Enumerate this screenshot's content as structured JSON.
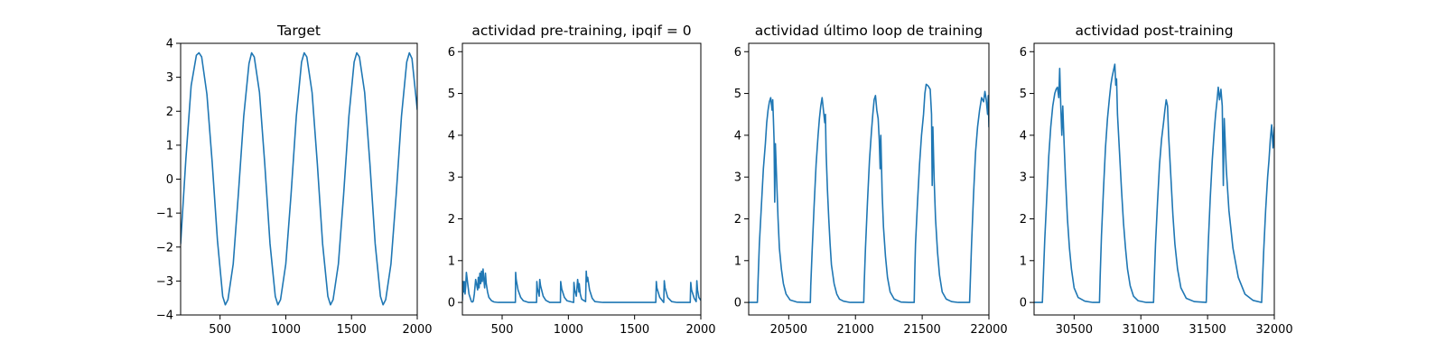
{
  "figure": {
    "background": "#ffffff",
    "line_color": "#1f77b4"
  },
  "chart_data": [
    {
      "type": "line",
      "title": "Target",
      "xlabel": "",
      "ylabel": "",
      "xlim": [
        200,
        2000
      ],
      "ylim": [
        -4,
        4
      ],
      "xticks": [
        500,
        1000,
        1500,
        2000
      ],
      "xtick_labels": [
        "500",
        "1000",
        "1500",
        "2000"
      ],
      "yticks": [
        -4,
        -3,
        -2,
        -1,
        0,
        1,
        2,
        3,
        4
      ],
      "ytick_labels": [
        "−4",
        "−3",
        "−2",
        "−1",
        "0",
        "1",
        "2",
        "3",
        "4"
      ],
      "grid": false,
      "series": [
        {
          "x": [
            200,
            240,
            280,
            320,
            340,
            360,
            400,
            440,
            480,
            520,
            540,
            560,
            600,
            640,
            680,
            720,
            740,
            760,
            800,
            840,
            880,
            920,
            940,
            960,
            1000,
            1040,
            1080,
            1120,
            1140,
            1160,
            1200,
            1240,
            1280,
            1320,
            1340,
            1360,
            1400,
            1440,
            1480,
            1520,
            1540,
            1560,
            1600,
            1640,
            1680,
            1720,
            1740,
            1760,
            1800,
            1840,
            1880,
            1920,
            1940,
            1960,
            2000
          ],
          "y": [
            -1.9,
            0.6,
            2.75,
            3.65,
            3.72,
            3.6,
            2.5,
            0.5,
            -1.8,
            -3.45,
            -3.7,
            -3.55,
            -2.5,
            -0.4,
            1.85,
            3.4,
            3.72,
            3.6,
            2.55,
            0.45,
            -1.9,
            -3.45,
            -3.7,
            -3.55,
            -2.5,
            -0.45,
            1.85,
            3.45,
            3.72,
            3.6,
            2.55,
            0.45,
            -1.9,
            -3.45,
            -3.7,
            -3.55,
            -2.5,
            -0.45,
            1.85,
            3.45,
            3.72,
            3.6,
            2.55,
            0.45,
            -1.9,
            -3.45,
            -3.7,
            -3.55,
            -2.5,
            -0.45,
            1.85,
            3.45,
            3.72,
            3.55,
            2.05
          ]
        }
      ]
    },
    {
      "type": "line",
      "title": "actividad pre-training, ipqif = 0",
      "xlabel": "",
      "ylabel": "",
      "xlim": [
        200,
        2000
      ],
      "ylim": [
        -0.3,
        6.2
      ],
      "xticks": [
        500,
        1000,
        1500,
        2000
      ],
      "xtick_labels": [
        "500",
        "1000",
        "1500",
        "2000"
      ],
      "yticks": [
        0,
        1,
        2,
        3,
        4,
        5,
        6
      ],
      "ytick_labels": [
        "0",
        "1",
        "2",
        "3",
        "4",
        "5",
        "6"
      ],
      "grid": false,
      "series": [
        {
          "x": [
            200,
            205,
            210,
            215,
            220,
            225,
            230,
            240,
            250,
            262,
            268,
            275,
            282,
            290,
            300,
            315,
            320,
            326,
            332,
            338,
            344,
            350,
            356,
            362,
            368,
            374,
            380,
            390,
            400,
            420,
            440,
            470,
            520,
            560,
            600,
            602,
            606,
            620,
            640,
            660,
            700,
            760,
            762,
            766,
            780,
            784,
            790,
            810,
            830,
            860,
            940,
            942,
            950,
            970,
            990,
            1040,
            1042,
            1048,
            1060,
            1070,
            1080,
            1082,
            1090,
            1100,
            1130,
            1135,
            1140,
            1146,
            1160,
            1180,
            1200,
            1260,
            1400,
            1550,
            1660,
            1664,
            1668,
            1690,
            1720,
            1724,
            1730,
            1750,
            1780,
            1820,
            1900,
            1920,
            1924,
            1930,
            1950,
            1965,
            1970,
            1975,
            1985,
            2000
          ],
          "y": [
            0.05,
            0.5,
            0.25,
            0.5,
            0.2,
            0.4,
            0.72,
            0.45,
            0.2,
            0.08,
            0.02,
            0.01,
            0.03,
            0.2,
            0.55,
            0.3,
            0.6,
            0.35,
            0.7,
            0.45,
            0.75,
            0.5,
            0.8,
            0.55,
            0.35,
            0.7,
            0.45,
            0.25,
            0.12,
            0.04,
            0.01,
            0.0,
            0.0,
            0.0,
            0.0,
            0.72,
            0.55,
            0.3,
            0.12,
            0.04,
            0.0,
            0.0,
            0.5,
            0.35,
            0.15,
            0.55,
            0.4,
            0.15,
            0.05,
            0.0,
            0.0,
            0.5,
            0.32,
            0.12,
            0.04,
            0.0,
            0.48,
            0.3,
            0.15,
            0.55,
            0.25,
            0.45,
            0.2,
            0.08,
            0.02,
            0.75,
            0.5,
            0.6,
            0.3,
            0.1,
            0.02,
            0.0,
            0.0,
            0.0,
            0.0,
            0.5,
            0.35,
            0.12,
            0.0,
            0.52,
            0.35,
            0.12,
            0.02,
            0.0,
            0.0,
            0.0,
            0.48,
            0.3,
            0.1,
            0.02,
            0.52,
            0.3,
            0.12,
            0.05
          ]
        }
      ]
    },
    {
      "type": "line",
      "title": "actividad último loop de training",
      "xlabel": "",
      "ylabel": "",
      "xlim": [
        20200,
        22000
      ],
      "ylim": [
        -0.3,
        6.2
      ],
      "xticks": [
        20500,
        21000,
        21500,
        22000
      ],
      "xtick_labels": [
        "20500",
        "21000",
        "21500",
        "22000"
      ],
      "yticks": [
        0,
        1,
        2,
        3,
        4,
        5,
        6
      ],
      "ytick_labels": [
        "0",
        "1",
        "2",
        "3",
        "4",
        "5",
        "6"
      ],
      "grid": false,
      "series": [
        {
          "x": [
            20200,
            20230,
            20265,
            20270,
            20280,
            20295,
            20310,
            20325,
            20335,
            20345,
            20355,
            20365,
            20375,
            20380,
            20385,
            20390,
            20395,
            20400,
            20410,
            20420,
            20430,
            20445,
            20460,
            20480,
            20510,
            20560,
            20620,
            20662,
            20665,
            20675,
            20690,
            20705,
            20720,
            20730,
            20740,
            20750,
            20760,
            20770,
            20775,
            20780,
            20790,
            20800,
            20810,
            20820,
            20840,
            20860,
            20880,
            20910,
            20960,
            21020,
            21062,
            21065,
            21075,
            21090,
            21105,
            21120,
            21130,
            21140,
            21150,
            21160,
            21170,
            21178,
            21185,
            21190,
            21200,
            21210,
            21225,
            21240,
            21260,
            21290,
            21340,
            21400,
            21440,
            21445,
            21450,
            21465,
            21480,
            21495,
            21510,
            21520,
            21530,
            21545,
            21560,
            21570,
            21575,
            21580,
            21590,
            21600,
            21615,
            21630,
            21650,
            21680,
            21720,
            21770,
            21820,
            21855,
            21860,
            21870,
            21885,
            21900,
            21915,
            21930,
            21945,
            21960,
            21970,
            21980,
            21990,
            21995,
            22000
          ],
          "y": [
            0.0,
            0.0,
            0.0,
            0.5,
            1.4,
            2.3,
            3.2,
            3.8,
            4.3,
            4.6,
            4.8,
            4.9,
            4.6,
            4.85,
            4.4,
            3.9,
            2.4,
            3.8,
            2.9,
            2.0,
            1.3,
            0.8,
            0.45,
            0.2,
            0.06,
            0.01,
            0.0,
            0.0,
            0.4,
            1.2,
            2.3,
            3.3,
            4.0,
            4.4,
            4.7,
            4.9,
            4.6,
            4.3,
            4.5,
            3.6,
            2.7,
            2.0,
            1.4,
            0.9,
            0.45,
            0.2,
            0.08,
            0.03,
            0.0,
            0.0,
            0.0,
            0.4,
            1.3,
            2.4,
            3.4,
            4.1,
            4.5,
            4.85,
            4.95,
            4.6,
            4.4,
            3.9,
            3.2,
            4.0,
            2.6,
            1.8,
            1.1,
            0.6,
            0.25,
            0.08,
            0.01,
            0.0,
            0.0,
            0.8,
            1.4,
            2.4,
            3.3,
            4.0,
            4.5,
            5.0,
            5.22,
            5.18,
            5.1,
            4.5,
            2.8,
            4.2,
            2.9,
            2.0,
            1.2,
            0.65,
            0.25,
            0.08,
            0.02,
            0.0,
            0.0,
            0.0,
            0.45,
            1.4,
            2.6,
            3.6,
            4.2,
            4.6,
            4.9,
            4.8,
            5.05,
            4.85,
            4.5,
            4.95,
            4.2
          ]
        }
      ]
    },
    {
      "type": "line",
      "title": "actividad post-training",
      "xlabel": "",
      "ylabel": "",
      "xlim": [
        30200,
        32000
      ],
      "ylim": [
        -0.3,
        6.2
      ],
      "xticks": [
        30500,
        31000,
        31500,
        32000
      ],
      "xtick_labels": [
        "30500",
        "31000",
        "31500",
        "32000"
      ],
      "yticks": [
        0,
        1,
        2,
        3,
        4,
        5,
        6
      ],
      "ytick_labels": [
        "0",
        "1",
        "2",
        "3",
        "4",
        "5",
        "6"
      ],
      "grid": false,
      "series": [
        {
          "x": [
            30200,
            30230,
            30262,
            30268,
            30280,
            30295,
            30310,
            30325,
            30340,
            30355,
            30365,
            30375,
            30385,
            30392,
            30400,
            30408,
            30415,
            30425,
            30435,
            30450,
            30465,
            30480,
            30500,
            30530,
            30580,
            30640,
            30690,
            30695,
            30705,
            30720,
            30735,
            30750,
            30765,
            30775,
            30785,
            30795,
            30805,
            30812,
            30818,
            30825,
            30840,
            30855,
            30870,
            30885,
            30900,
            30920,
            30945,
            30980,
            31040,
            31095,
            31100,
            31110,
            31125,
            31140,
            31155,
            31170,
            31180,
            31190,
            31200,
            31208,
            31215,
            31225,
            31240,
            31255,
            31275,
            31300,
            31340,
            31400,
            31490,
            31495,
            31505,
            31520,
            31535,
            31550,
            31560,
            31570,
            31580,
            31590,
            31600,
            31610,
            31618,
            31625,
            31640,
            31660,
            31690,
            31730,
            31780,
            31840,
            31905,
            31910,
            31920,
            31935,
            31950,
            31960,
            31970,
            31980,
            31990,
            32000
          ],
          "y": [
            0.0,
            0.0,
            0.0,
            0.5,
            1.5,
            2.5,
            3.5,
            4.2,
            4.7,
            5.0,
            5.1,
            5.15,
            4.9,
            5.6,
            4.7,
            4.0,
            4.7,
            3.8,
            3.0,
            2.0,
            1.3,
            0.8,
            0.35,
            0.12,
            0.03,
            0.0,
            0.0,
            0.6,
            1.6,
            2.7,
            3.7,
            4.4,
            4.9,
            5.2,
            5.4,
            5.55,
            5.7,
            5.2,
            5.35,
            4.5,
            3.6,
            2.7,
            1.9,
            1.3,
            0.8,
            0.4,
            0.15,
            0.04,
            0.0,
            0.0,
            0.5,
            1.4,
            2.4,
            3.3,
            3.9,
            4.3,
            4.6,
            4.85,
            4.7,
            4.0,
            3.6,
            3.0,
            2.1,
            1.4,
            0.8,
            0.35,
            0.1,
            0.02,
            0.0,
            0.5,
            1.4,
            2.5,
            3.4,
            4.1,
            4.5,
            4.8,
            5.15,
            4.85,
            5.1,
            4.7,
            2.8,
            4.4,
            3.2,
            2.2,
            1.3,
            0.6,
            0.2,
            0.05,
            0.0,
            0.4,
            1.2,
            2.2,
            3.0,
            3.4,
            3.9,
            4.25,
            3.7,
            4.2
          ]
        }
      ]
    }
  ]
}
